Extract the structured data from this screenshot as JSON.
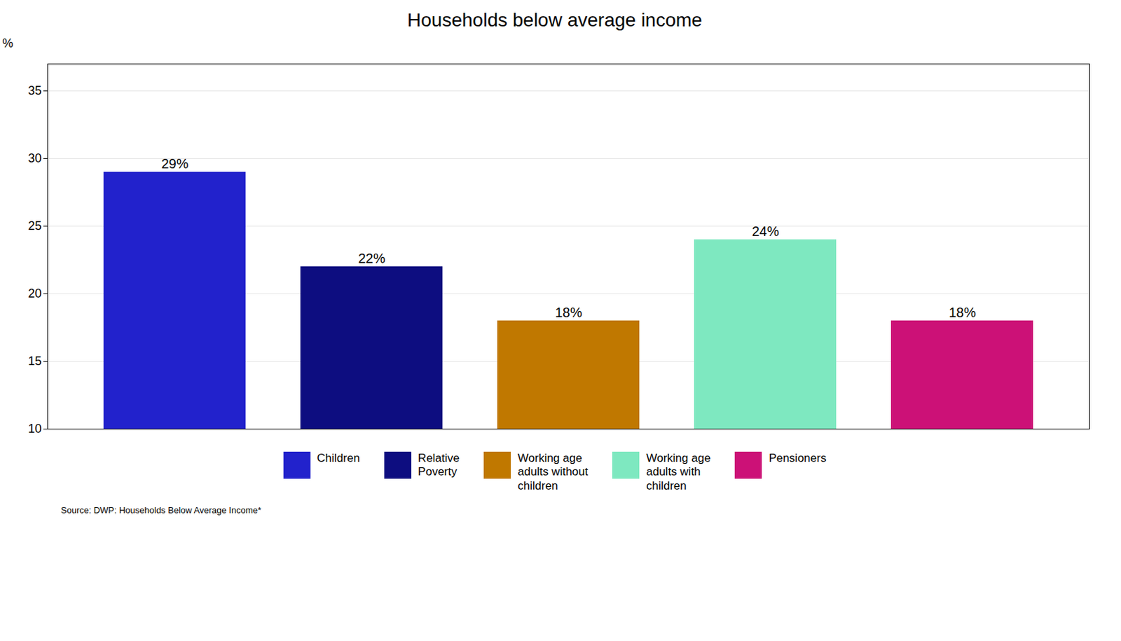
{
  "chart_data": {
    "type": "bar",
    "title": "Households below average income",
    "categories": [
      "Children",
      "Relative\nPoverty",
      "Working age\nadults without\nchildren",
      "Working age\nadults with\nchildren",
      "Pensioners"
    ],
    "values": [
      29,
      22,
      18,
      24,
      18
    ],
    "value_labels": [
      "29%",
      "22%",
      "18%",
      "24%",
      "18%"
    ],
    "colors": [
      "#2222cc",
      "#0d0d80",
      "#c07800",
      "#7ee8c0",
      "#cc1177"
    ],
    "ylabel": "%",
    "ylim": [
      10,
      37
    ],
    "yticks": [
      10,
      15,
      20,
      25,
      30,
      35
    ],
    "grid": true,
    "data_labels": true,
    "tick_labels": "y",
    "legend": "bottom",
    "caption": "Source: DWP: Households Below Average Income*"
  }
}
